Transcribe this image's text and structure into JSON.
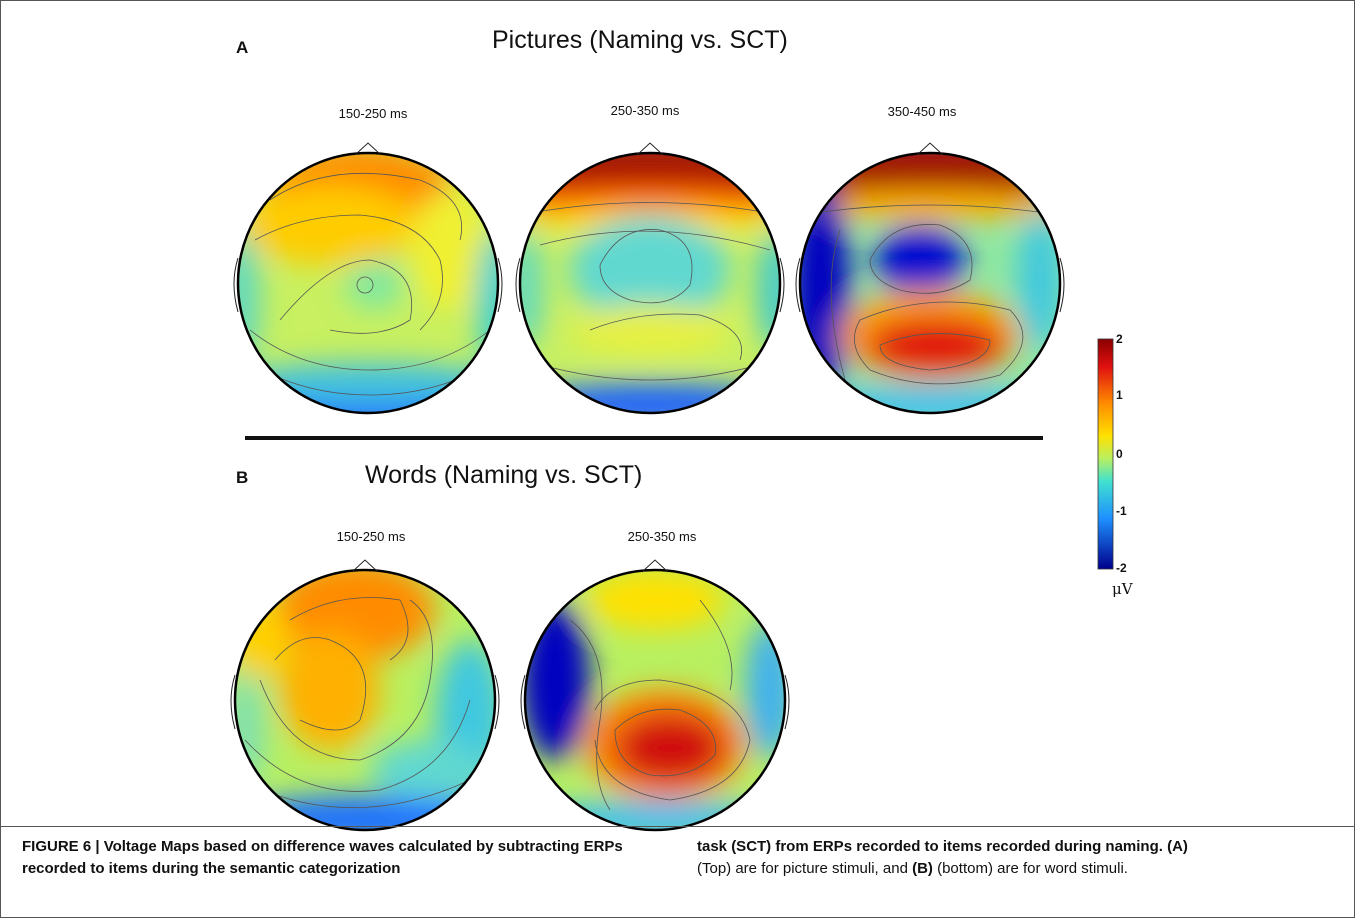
{
  "panels": [
    {
      "letter": "A",
      "title": "Pictures (Naming vs. SCT)",
      "maps": [
        {
          "time": "150-250 ms"
        },
        {
          "time": "250-350 ms"
        },
        {
          "time": "350-450 ms"
        }
      ]
    },
    {
      "letter": "B",
      "title": "Words (Naming vs. SCT)",
      "maps": [
        {
          "time": "150-250 ms"
        },
        {
          "time": "250-350 ms"
        }
      ]
    }
  ],
  "colorbar": {
    "ticks": [
      "2",
      "1",
      "0",
      "-1",
      "-2"
    ],
    "unit": "μV",
    "range": [
      -2,
      2
    ]
  },
  "caption": {
    "label": "FIGURE 6 | Voltage Maps based on difference waves calculated by subtracting ERPs recorded to items during the semantic categorization",
    "bold_continuation": "task (SCT) from ERPs recorded to items recorded during naming.",
    "ref_a": "(A)",
    "text_a": "(Top) are for picture stimuli, and",
    "ref_b": "(B)",
    "text_b": "(bottom) are for word stimuli."
  },
  "colors": {
    "max": "#8b0000",
    "min": "#00008b",
    "zero": "#b8f060",
    "outline": "#000000"
  }
}
